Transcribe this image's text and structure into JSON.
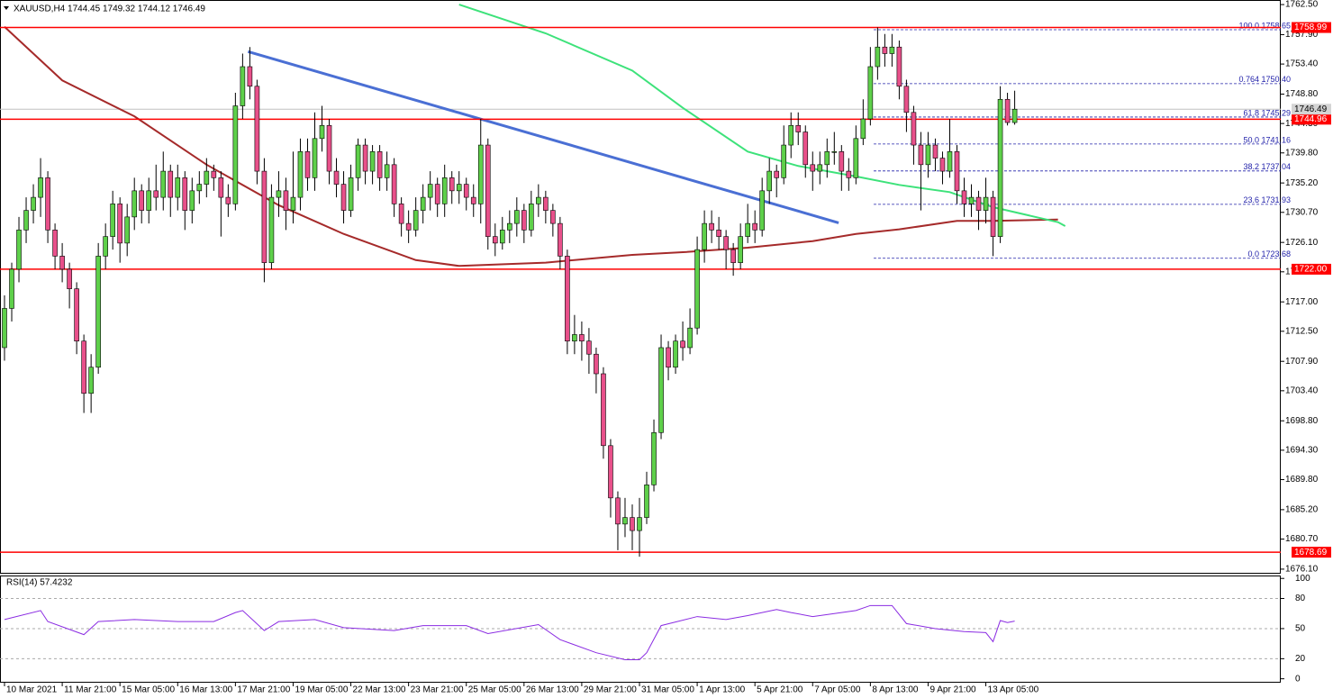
{
  "chart_data": [
    {
      "type": "candlestick",
      "title": "XAUUSD,H4  1744.45 1749.32 1744.12 1746.49",
      "up_color": "#5ed04a",
      "down_color": "#e8508a",
      "xlim": [
        -0.625,
        176.875
      ],
      "ylim": [
        1675.4,
        1763.2
      ],
      "xticks": [
        {
          "value": 0,
          "label": "10 Mar 2021"
        },
        {
          "value": 8,
          "label": "11 Mar 21:00"
        },
        {
          "value": 16,
          "label": "15 Mar 05:00"
        },
        {
          "value": 24,
          "label": "16 Mar 13:00"
        },
        {
          "value": 32,
          "label": "17 Mar 21:00"
        },
        {
          "value": 40,
          "label": "19 Mar 05:00"
        },
        {
          "value": 48,
          "label": "22 Mar 13:00"
        },
        {
          "value": 56,
          "label": "23 Mar 21:00"
        },
        {
          "value": 64,
          "label": "25 Mar 05:00"
        },
        {
          "value": 72,
          "label": "26 Mar 13:00"
        },
        {
          "value": 80,
          "label": "29 Mar 21:00"
        },
        {
          "value": 88,
          "label": "31 Mar 05:00"
        },
        {
          "value": 96,
          "label": "1 Apr 13:00"
        },
        {
          "value": 104,
          "label": "5 Apr 21:00"
        },
        {
          "value": 112,
          "label": "7 Apr 05:00"
        },
        {
          "value": 120,
          "label": "8 Apr 13:00"
        },
        {
          "value": 128,
          "label": "9 Apr 21:00"
        },
        {
          "value": 136,
          "label": "13 Apr 05:00"
        }
      ],
      "yticks": [
        {
          "value": 1762.5,
          "label": "1762.50"
        },
        {
          "value": 1757.9,
          "label": "1757.90"
        },
        {
          "value": 1753.4,
          "label": "1753.40"
        },
        {
          "value": 1748.8,
          "label": "1748.80"
        },
        {
          "value": 1744.3,
          "label": "1744.30"
        },
        {
          "value": 1739.8,
          "label": "1739.80"
        },
        {
          "value": 1735.2,
          "label": "1735.20"
        },
        {
          "value": 1730.7,
          "label": "1730.70"
        },
        {
          "value": 1726.1,
          "label": "1726.10"
        },
        {
          "value": 1721.6,
          "label": "1721.60"
        },
        {
          "value": 1717.0,
          "label": "1717.00"
        },
        {
          "value": 1712.5,
          "label": "1712.50"
        },
        {
          "value": 1707.9,
          "label": "1707.90"
        },
        {
          "value": 1703.4,
          "label": "1703.40"
        },
        {
          "value": 1698.8,
          "label": "1698.80"
        },
        {
          "value": 1694.3,
          "label": "1694.30"
        },
        {
          "value": 1689.8,
          "label": "1689.80"
        },
        {
          "value": 1685.2,
          "label": "1685.20"
        },
        {
          "value": 1680.7,
          "label": "1680.70"
        },
        {
          "value": 1676.1,
          "label": "1676.10"
        }
      ],
      "open": [
        1710,
        1716,
        1722,
        1728,
        1731,
        1733,
        1736,
        1728,
        1724,
        1722,
        1719,
        1711,
        1703,
        1707,
        1724,
        1727,
        1732,
        1726,
        1730,
        1734,
        1731,
        1734,
        1733,
        1737,
        1733,
        1736,
        1731,
        1734,
        1735,
        1737,
        1736,
        1733,
        1732,
        1747,
        1753,
        1750,
        1737,
        1723,
        1733,
        1734,
        1731,
        1733,
        1740,
        1736,
        1742,
        1744,
        1737,
        1735,
        1731,
        1736,
        1741,
        1737,
        1740,
        1736,
        1738,
        1732,
        1729,
        1728,
        1731,
        1733,
        1735,
        1732,
        1736,
        1734,
        1735,
        1733,
        1732,
        1741,
        1727,
        1726,
        1728,
        1729,
        1731,
        1728,
        1732,
        1733,
        1731,
        1729,
        1724,
        1711,
        1712,
        1711,
        1709,
        1706,
        1695,
        1687,
        1683,
        1684,
        1682,
        1684,
        1689,
        1697,
        1710,
        1707,
        1711,
        1710,
        1713,
        1725,
        1729,
        1728,
        1727,
        1725,
        1723,
        1727,
        1729,
        1728,
        1734,
        1737,
        1736,
        1741,
        1744,
        1743,
        1738,
        1737,
        1738,
        1740,
        1740,
        1737,
        1736,
        1742,
        1745,
        1753,
        1756,
        1755,
        1756,
        1750,
        1746,
        1741,
        1738,
        1741,
        1739,
        1737,
        1740,
        1734,
        1732,
        1733,
        1731,
        1733,
        1727,
        1748,
        1744.45
      ],
      "high": [
        1718,
        1723,
        1730,
        1733,
        1735,
        1739,
        1737,
        1729,
        1726,
        1723,
        1720,
        1712,
        1709,
        1726,
        1729,
        1734,
        1733,
        1732,
        1736,
        1735,
        1736,
        1738,
        1740,
        1738,
        1738,
        1737,
        1736,
        1737,
        1739,
        1738,
        1737,
        1735,
        1749,
        1755,
        1756,
        1751,
        1739,
        1735,
        1737,
        1736,
        1740,
        1742,
        1742,
        1746,
        1747,
        1745,
        1739,
        1737,
        1738,
        1742,
        1742,
        1741,
        1741,
        1740,
        1739,
        1733,
        1731,
        1733,
        1735,
        1737,
        1736,
        1738,
        1737,
        1737,
        1736,
        1735,
        1745,
        1742,
        1729,
        1730,
        1731,
        1733,
        1732,
        1734,
        1735,
        1734,
        1732,
        1730,
        1725,
        1715,
        1714,
        1713,
        1710,
        1707,
        1696,
        1688,
        1687,
        1686,
        1687,
        1691,
        1699,
        1712,
        1711,
        1712,
        1714,
        1716,
        1727,
        1731,
        1731,
        1730,
        1728,
        1726,
        1729,
        1732,
        1731,
        1736,
        1739,
        1738,
        1744,
        1746,
        1746,
        1744,
        1740,
        1740,
        1742,
        1743,
        1741,
        1739,
        1744,
        1748,
        1756,
        1759,
        1758,
        1758,
        1757,
        1751,
        1747,
        1743,
        1743,
        1742,
        1740,
        1745,
        1741,
        1736,
        1735,
        1734,
        1736,
        1734,
        1750,
        1749,
        1749.32
      ],
      "low": [
        1708,
        1714,
        1720,
        1726,
        1729,
        1730,
        1726,
        1722,
        1720,
        1716,
        1709,
        1700,
        1700,
        1706,
        1722,
        1725,
        1723,
        1724,
        1728,
        1729,
        1729,
        1731,
        1731,
        1730,
        1731,
        1728,
        1729,
        1732,
        1733,
        1734,
        1727,
        1730,
        1731,
        1745,
        1748,
        1735,
        1720,
        1722,
        1730,
        1728,
        1729,
        1731,
        1734,
        1734,
        1740,
        1735,
        1733,
        1729,
        1730,
        1734,
        1735,
        1735,
        1734,
        1734,
        1730,
        1727,
        1726,
        1727,
        1729,
        1731,
        1730,
        1730,
        1732,
        1732,
        1731,
        1730,
        1729,
        1725,
        1724,
        1725,
        1726,
        1727,
        1726,
        1727,
        1730,
        1729,
        1727,
        1722,
        1709,
        1709,
        1708,
        1706,
        1703,
        1693,
        1684,
        1679,
        1681,
        1679,
        1678,
        1683,
        1688,
        1696,
        1705,
        1706,
        1708,
        1709,
        1712,
        1723,
        1726,
        1725,
        1722,
        1721,
        1722,
        1726,
        1726,
        1727,
        1732,
        1733,
        1735,
        1739,
        1741,
        1736,
        1734,
        1735,
        1736,
        1738,
        1734,
        1734,
        1735,
        1741,
        1744,
        1751,
        1753,
        1753,
        1748,
        1743,
        1738,
        1731,
        1736,
        1737,
        1735,
        1736,
        1732,
        1730,
        1730,
        1728,
        1729,
        1724,
        1726,
        1744,
        1744.12
      ],
      "close": [
        1716,
        1722,
        1728,
        1731,
        1733,
        1736,
        1728,
        1724,
        1722,
        1719,
        1711,
        1703,
        1707,
        1724,
        1727,
        1732,
        1726,
        1730,
        1734,
        1731,
        1734,
        1733,
        1737,
        1733,
        1736,
        1731,
        1734,
        1735,
        1737,
        1736,
        1733,
        1732,
        1747,
        1753,
        1750,
        1737,
        1723,
        1733,
        1734,
        1731,
        1733,
        1740,
        1736,
        1742,
        1744,
        1737,
        1735,
        1731,
        1736,
        1741,
        1737,
        1740,
        1736,
        1738,
        1732,
        1729,
        1728,
        1731,
        1733,
        1735,
        1732,
        1736,
        1734,
        1735,
        1733,
        1732,
        1741,
        1727,
        1726,
        1728,
        1729,
        1731,
        1728,
        1732,
        1733,
        1731,
        1729,
        1724,
        1711,
        1712,
        1711,
        1709,
        1706,
        1695,
        1687,
        1683,
        1684,
        1682,
        1684,
        1689,
        1697,
        1710,
        1707,
        1711,
        1710,
        1713,
        1725,
        1729,
        1728,
        1727,
        1725,
        1723,
        1727,
        1729,
        1728,
        1734,
        1737,
        1736,
        1741,
        1744,
        1743,
        1738,
        1737,
        1738,
        1740,
        1740,
        1737,
        1736,
        1742,
        1745,
        1753,
        1756,
        1755,
        1756,
        1750,
        1746,
        1741,
        1738,
        1741,
        1739,
        1737,
        1740,
        1734,
        1732,
        1733,
        1731,
        1733,
        1727,
        1748,
        1744.45,
        1746.49
      ],
      "moving_averages": [
        {
          "color": "#a52a2a",
          "x": [
            0,
            8,
            18,
            28,
            38,
            47,
            57,
            63,
            75,
            87,
            94,
            103,
            112,
            118,
            124,
            132,
            137,
            146
          ],
          "values": [
            1759.1,
            1750.9,
            1745.4,
            1738.0,
            1731.8,
            1727.4,
            1723.4,
            1722.5,
            1723.0,
            1724.2,
            1724.6,
            1725.3,
            1726.3,
            1727.4,
            1728.1,
            1729.4,
            1729.4,
            1729.6
          ]
        },
        {
          "color": "#3de27a",
          "x": [
            63,
            75,
            87,
            94,
            103,
            110,
            118,
            124,
            131,
            137,
            146,
            147
          ],
          "values": [
            1762.5,
            1758.1,
            1752.4,
            1746.7,
            1740.0,
            1737.8,
            1736.2,
            1734.9,
            1733.8,
            1731.5,
            1729.2,
            1728.6
          ]
        }
      ],
      "trendline": {
        "color": "#4a6fd4",
        "x": [
          33.75,
          115.6
        ],
        "values": [
          1755.3,
          1729.1
        ]
      },
      "level_color": "#ff0000",
      "levels": [
        1758.99,
        1744.96,
        {
          "value": 1722.0,
          "label": "1722.00"
        },
        1678.69
      ],
      "fib_color": "#2222aa",
      "fib_levels": [
        {
          "value": 1758.65,
          "label": "100.0 1758.65"
        },
        {
          "value": 1750.4,
          "label": "0.764 1750.40"
        },
        {
          "value": 1745.29,
          "label": "61.8 1745.29"
        },
        {
          "value": 1741.16,
          "label": "50.0 1741.16"
        },
        {
          "value": 1737.04,
          "label": "38.2 1737.04"
        },
        {
          "value": 1731.93,
          "label": "23.6 1731.93"
        },
        {
          "value": 1723.68,
          "label": "0.0 1723.68"
        }
      ],
      "last_price": 1746.49
    },
    {
      "type": "line",
      "title": "RSI(14) 57.4232",
      "color": "#8a2be2",
      "xlim": [
        -0.625,
        176.875
      ],
      "ylim": [
        -3,
        102
      ],
      "yticks": [
        0,
        20,
        50,
        80,
        100
      ],
      "levels": [
        20,
        50,
        80
      ],
      "x": [
        0,
        5,
        6,
        11,
        13,
        18,
        24,
        29,
        32,
        33,
        36,
        38,
        43,
        47,
        54,
        58,
        64,
        67,
        74,
        77,
        82,
        86,
        88,
        89,
        91,
        96,
        100,
        103,
        107,
        109,
        112,
        118,
        120,
        123,
        125,
        129,
        133,
        136,
        137,
        138,
        139,
        140
      ],
      "values": [
        59,
        68,
        57,
        44,
        57,
        59,
        57,
        57,
        66,
        68,
        48,
        57,
        59,
        51,
        48,
        53,
        53,
        45,
        54,
        39,
        26,
        19,
        19,
        26,
        53,
        62,
        59,
        63,
        69,
        66,
        62,
        68,
        73,
        73,
        55,
        50,
        47,
        46,
        37,
        58,
        56,
        57.42
      ]
    }
  ]
}
